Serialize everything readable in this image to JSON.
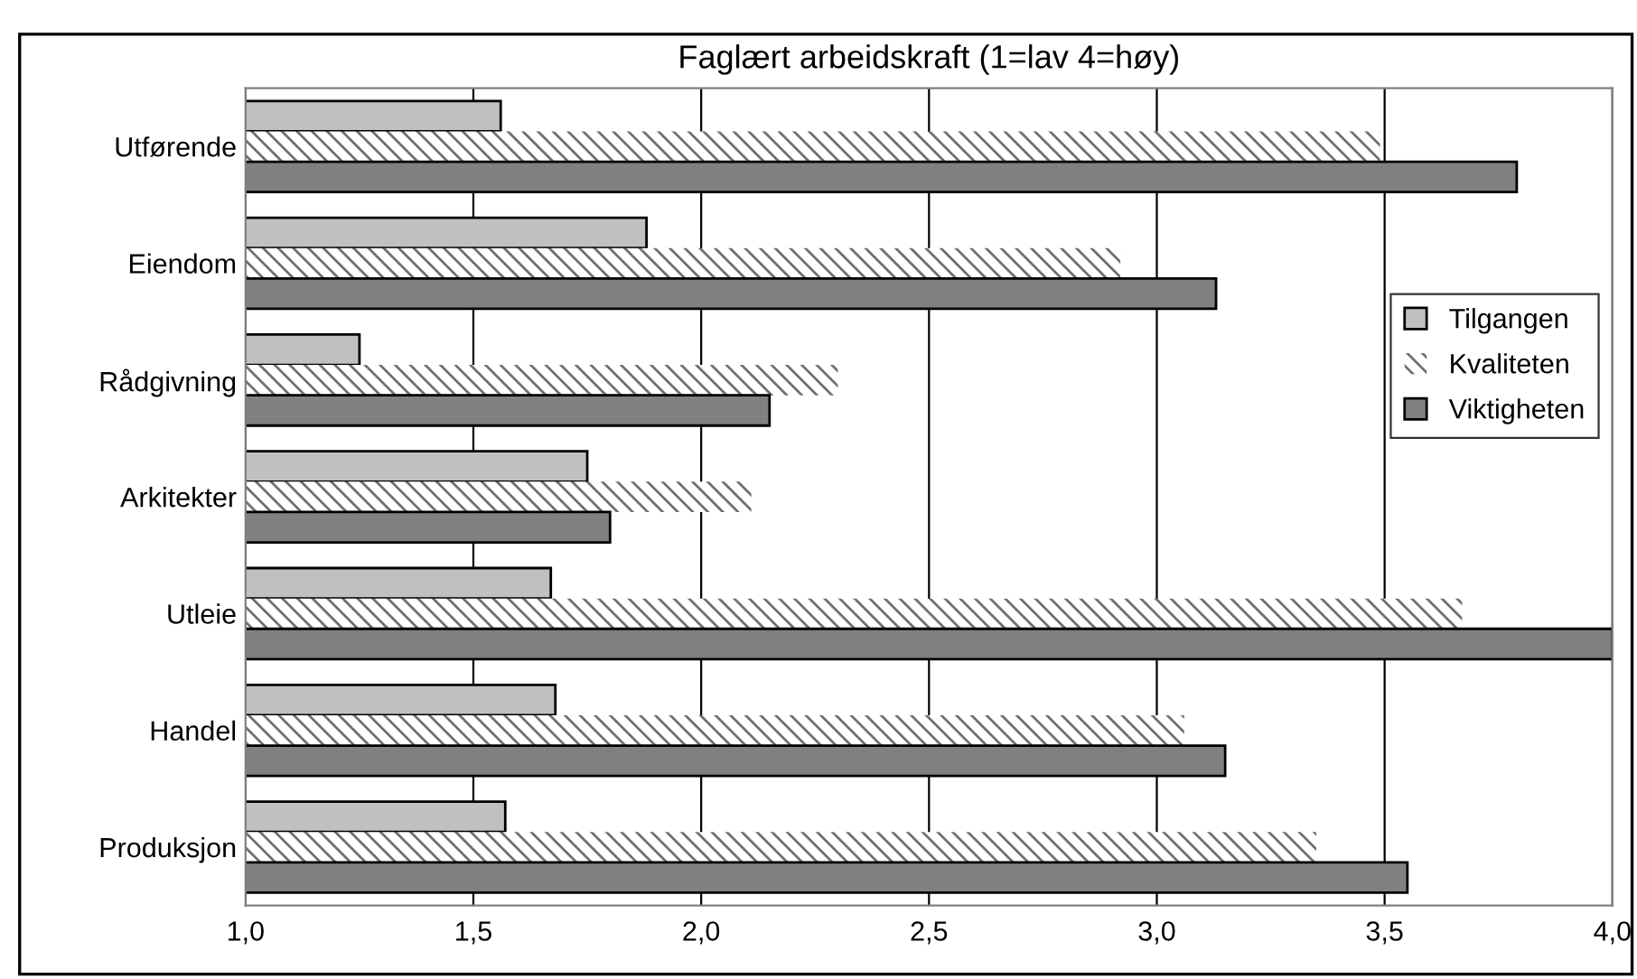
{
  "chart_data": {
    "type": "bar",
    "orientation": "horizontal",
    "title": "Faglært arbeidskraft (1=lav 4=høy)",
    "categories": [
      "Utførende",
      "Eiendom",
      "Rådgivning",
      "Arkitekter",
      "Utleie",
      "Handel",
      "Produksjon"
    ],
    "series": [
      {
        "name": "Tilgangen",
        "color": "#c0c0c0",
        "values": [
          1.56,
          1.88,
          1.25,
          1.75,
          1.67,
          1.68,
          1.57
        ]
      },
      {
        "name": "Kvaliteten",
        "color": "#ffffff",
        "values": [
          3.49,
          2.92,
          2.3,
          2.11,
          3.67,
          3.06,
          3.35
        ]
      },
      {
        "name": "Viktigheten",
        "color": "#808080",
        "values": [
          3.79,
          3.13,
          2.15,
          1.8,
          4.0,
          3.15,
          3.55
        ]
      }
    ],
    "xlim": [
      1.0,
      4.0
    ],
    "xticks": [
      {
        "value": 1.0,
        "label": "1,0"
      },
      {
        "value": 1.5,
        "label": "1,5"
      },
      {
        "value": 2.0,
        "label": "2,0"
      },
      {
        "value": 2.5,
        "label": "2,5"
      },
      {
        "value": 3.0,
        "label": "3,0"
      },
      {
        "value": 3.5,
        "label": "3,5"
      },
      {
        "value": 4.0,
        "label": "4,0"
      }
    ],
    "grid": "x",
    "legend": "right"
  }
}
